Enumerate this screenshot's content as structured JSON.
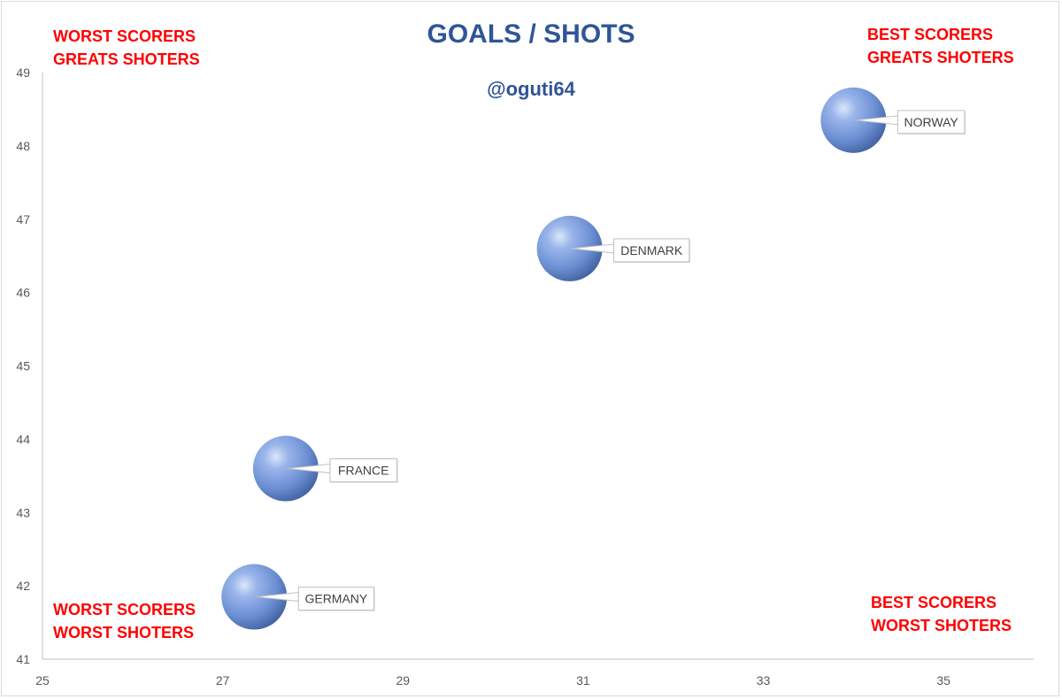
{
  "chart_data": {
    "type": "scatter",
    "title": "GOALS / SHOTS",
    "subtitle": "@oguti64",
    "xlim": [
      25,
      36
    ],
    "ylim": [
      41,
      49
    ],
    "x_ticks": [
      25,
      27,
      29,
      31,
      33,
      35
    ],
    "y_ticks": [
      41,
      42,
      43,
      44,
      45,
      46,
      47,
      48,
      49
    ],
    "grid": false,
    "points": [
      {
        "label": "GERMANY",
        "x": 27.35,
        "y": 41.85
      },
      {
        "label": "FRANCE",
        "x": 27.7,
        "y": 43.6
      },
      {
        "label": "DENMARK",
        "x": 30.85,
        "y": 46.6
      },
      {
        "label": "NORWAY",
        "x": 34.0,
        "y": 48.35
      }
    ],
    "annotations": {
      "top_left": [
        "WORST SCORERS",
        "GREATS SHOTERS"
      ],
      "top_right": [
        "BEST SCORERS",
        "GREATS SHOTERS"
      ],
      "bottom_left": [
        "WORST SCORERS",
        "WORST SHOTERS"
      ],
      "bottom_right": [
        "BEST SCORERS",
        "WORST SHOTERS"
      ]
    },
    "colors": {
      "bubble": "#6f94d6",
      "annotation": "#ff0000",
      "title": "#2f5597"
    }
  }
}
